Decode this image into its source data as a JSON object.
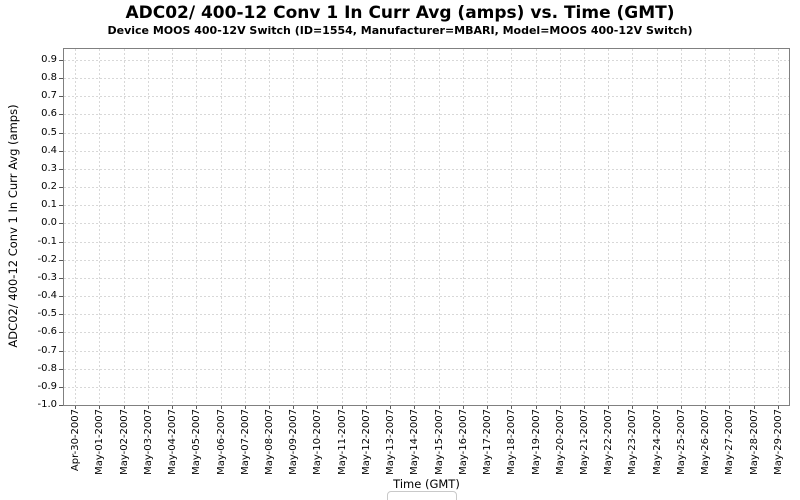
{
  "chart": {
    "title": "ADC02/ 400-12 Conv 1 In Curr Avg (amps) vs. Time (GMT)",
    "subtitle": "Device MOOS 400-12V Switch (ID=1554, Manufacturer=MBARI, Model=MOOS 400-12V Switch)",
    "xlabel": "Time (GMT)",
    "ylabel": "ADC02/ 400-12 Conv 1 In Curr Avg (amps)"
  },
  "chart_data": {
    "type": "line",
    "title": "ADC02/ 400-12 Conv 1 In Curr Avg (amps) vs. Time (GMT)",
    "subtitle": "Device MOOS 400-12V Switch (ID=1554, Manufacturer=MBARI, Model=MOOS 400-12V Switch)",
    "xlabel": "Time (GMT)",
    "ylabel": "ADC02/ 400-12 Conv 1 In Curr Avg (amps)",
    "series": [],
    "x_tick_labels": [
      "Apr-30-2007",
      "May-01-2007",
      "May-02-2007",
      "May-03-2007",
      "May-04-2007",
      "May-05-2007",
      "May-06-2007",
      "May-07-2007",
      "May-08-2007",
      "May-09-2007",
      "May-10-2007",
      "May-11-2007",
      "May-12-2007",
      "May-13-2007",
      "May-14-2007",
      "May-15-2007",
      "May-16-2007",
      "May-17-2007",
      "May-18-2007",
      "May-19-2007",
      "May-20-2007",
      "May-21-2007",
      "May-22-2007",
      "May-23-2007",
      "May-24-2007",
      "May-25-2007",
      "May-26-2007",
      "May-27-2007",
      "May-28-2007",
      "May-29-2007"
    ],
    "y_tick_labels": [
      "0.9",
      "0.8",
      "0.7",
      "0.6",
      "0.5",
      "0.4",
      "0.3",
      "0.2",
      "0.1",
      "0.0",
      "-0.1",
      "-0.2",
      "-0.3",
      "-0.4",
      "-0.5",
      "-0.6",
      "-0.7",
      "-0.8",
      "-0.9",
      "-1.0"
    ],
    "ylim": [
      -1.0,
      0.966
    ],
    "grid": true,
    "legend": {
      "visible": true,
      "items": []
    }
  },
  "colors": {
    "grid": "#d8d8d8",
    "plot_border": "#808080",
    "tick": "#5a5a5a",
    "background": "#ffffff"
  }
}
